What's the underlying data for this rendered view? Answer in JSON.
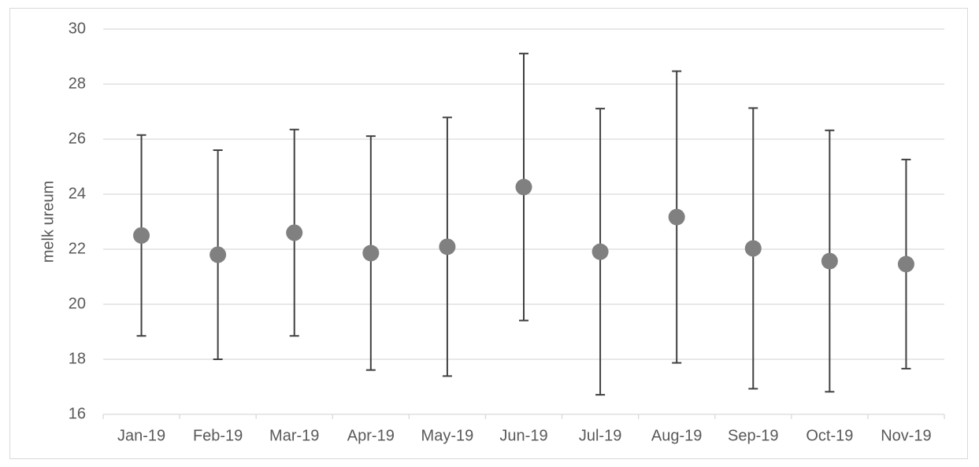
{
  "chart_data": {
    "type": "errorbar",
    "y_label": "melk ureum",
    "categories": [
      "Jan-19",
      "Feb-19",
      "Mar-19",
      "Apr-19",
      "May-19",
      "Jun-19",
      "Jul-19",
      "Aug-19",
      "Sep-19",
      "Oct-19",
      "Nov-19"
    ],
    "values": [
      22.5,
      21.8,
      22.6,
      21.86,
      22.09,
      24.26,
      21.91,
      23.17,
      22.03,
      21.57,
      21.46
    ],
    "errors": [
      3.65,
      3.8,
      3.75,
      4.25,
      4.7,
      4.85,
      5.2,
      5.3,
      5.1,
      4.75,
      3.8
    ],
    "color": "#808080",
    "error_color": "#404040",
    "ylim": [
      16,
      30
    ],
    "yticks": [
      16,
      18,
      20,
      22,
      24,
      26,
      28,
      30
    ],
    "grid": true
  }
}
